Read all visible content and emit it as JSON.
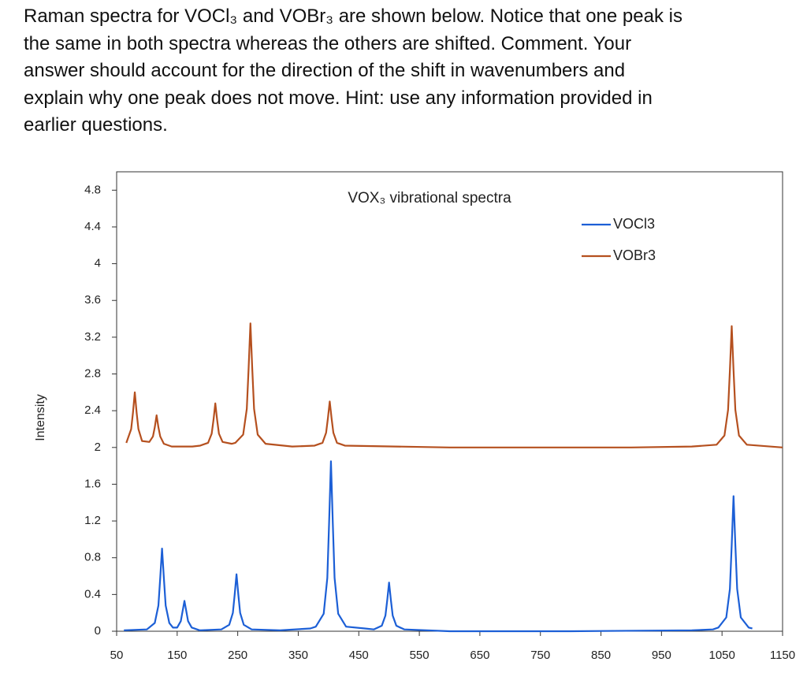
{
  "question": {
    "lines": [
      "Raman spectra for VOCl₃ and VOBr₃ are shown below. Notice that one peak is",
      "the same in both spectra whereas the others are shifted. Comment. Your",
      "answer should account for the direction of the shift in wavenumbers and",
      "explain why one peak does not move. Hint: use any information provided in",
      "earlier questions."
    ]
  },
  "chart_data": {
    "type": "line",
    "title": "VOX₃ vibrational spectra",
    "ylabel": "Intensity",
    "xlim": [
      50,
      1150
    ],
    "xticks": [
      50,
      150,
      250,
      350,
      450,
      550,
      650,
      750,
      850,
      950,
      1050,
      1150
    ],
    "ylim": [
      0,
      5
    ],
    "yticks": [
      0,
      0.4,
      0.8,
      1.2,
      1.6,
      2,
      2.4,
      2.8,
      3.2,
      3.6,
      4,
      4.4,
      4.8
    ],
    "grid": false,
    "legend": "upper right",
    "series": [
      {
        "name": "VOCl3",
        "color": "#1c5fd6",
        "x": [
          62,
          100,
          113,
          119,
          122,
          125,
          128,
          131,
          137,
          143,
          150,
          156,
          159,
          162,
          165,
          168,
          174,
          187,
          223,
          236,
          242,
          245,
          248,
          251,
          254,
          260,
          273,
          320,
          370,
          379,
          392,
          398,
          401,
          404,
          407,
          410,
          416,
          429,
          460,
          475,
          488,
          494,
          497,
          500,
          503,
          506,
          512,
          525,
          600,
          800,
          1000,
          1035,
          1044,
          1057,
          1063,
          1066,
          1069,
          1072,
          1075,
          1081,
          1094,
          1100
        ],
        "values": [
          0.01,
          0.02,
          0.09,
          0.28,
          0.58,
          0.9,
          0.58,
          0.28,
          0.09,
          0.04,
          0.04,
          0.11,
          0.22,
          0.33,
          0.22,
          0.11,
          0.04,
          0.01,
          0.02,
          0.07,
          0.2,
          0.4,
          0.62,
          0.4,
          0.2,
          0.07,
          0.02,
          0.01,
          0.03,
          0.05,
          0.19,
          0.58,
          1.19,
          1.85,
          1.19,
          0.58,
          0.19,
          0.05,
          0.03,
          0.02,
          0.06,
          0.17,
          0.34,
          0.53,
          0.34,
          0.17,
          0.06,
          0.02,
          0,
          0,
          0.01,
          0.02,
          0.04,
          0.15,
          0.46,
          0.94,
          1.47,
          0.94,
          0.46,
          0.15,
          0.04,
          0.03
        ]
      },
      {
        "name": "VOBr3",
        "color": "#b5501f",
        "x": [
          66,
          74,
          77,
          80,
          83,
          86,
          92,
          104,
          110,
          113,
          116,
          119,
          122,
          128,
          141,
          175,
          188,
          201,
          207,
          210,
          213,
          216,
          219,
          225,
          240,
          246,
          259,
          265,
          268,
          271,
          274,
          277,
          283,
          296,
          340,
          377,
          390,
          396,
          399,
          402,
          405,
          408,
          414,
          427,
          600,
          900,
          1000,
          1041,
          1054,
          1060,
          1063,
          1066,
          1069,
          1072,
          1078,
          1091,
          1150
        ],
        "values": [
          2.05,
          2.2,
          2.38,
          2.6,
          2.38,
          2.2,
          2.07,
          2.06,
          2.12,
          2.22,
          2.35,
          2.22,
          2.12,
          2.04,
          2.01,
          2.01,
          2.02,
          2.05,
          2.15,
          2.3,
          2.48,
          2.3,
          2.15,
          2.06,
          2.04,
          2.05,
          2.14,
          2.42,
          2.86,
          3.35,
          2.86,
          2.42,
          2.14,
          2.04,
          2.01,
          2.02,
          2.05,
          2.16,
          2.32,
          2.5,
          2.32,
          2.16,
          2.05,
          2.02,
          2,
          2,
          2.01,
          2.03,
          2.13,
          2.41,
          2.84,
          3.32,
          2.84,
          2.41,
          2.13,
          2.03,
          2
        ]
      }
    ]
  }
}
